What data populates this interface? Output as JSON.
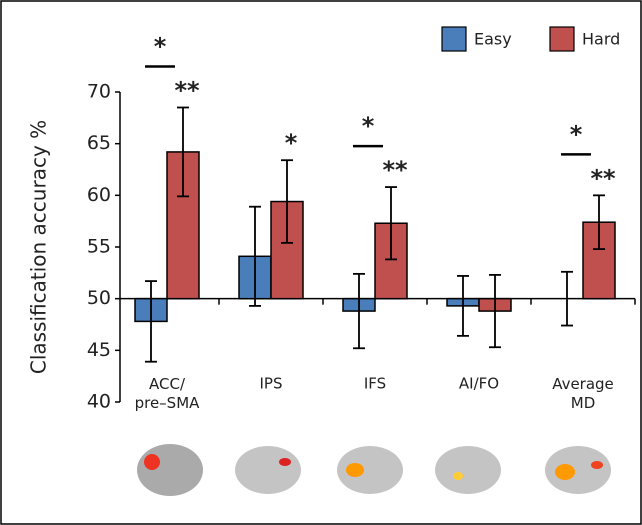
{
  "chart_data": {
    "type": "bar",
    "y_label": "Classification accuracy %",
    "categories": [
      "ACC/\npre–SMA",
      "IPS",
      "IFS",
      "AI/FO",
      "Average\nMD"
    ],
    "series": [
      {
        "name": "Easy",
        "color": "#4a7ebb",
        "values": [
          47.8,
          54.1,
          48.8,
          49.3,
          50.0
        ],
        "errors": [
          3.9,
          4.8,
          3.6,
          2.9,
          2.6
        ]
      },
      {
        "name": "Hard",
        "color": "#c0504d",
        "values": [
          64.2,
          59.4,
          57.3,
          48.8,
          57.4
        ],
        "errors": [
          4.3,
          4.0,
          3.5,
          3.5,
          2.6
        ]
      }
    ],
    "baseline": 50,
    "ylim": [
      40,
      70
    ],
    "yticks": [
      40,
      45,
      50,
      55,
      60,
      65,
      70
    ],
    "legend": "top-right",
    "significance": [
      {
        "category": 0,
        "label": "*"
      },
      {
        "category": 0,
        "series": 1,
        "label": "**"
      },
      {
        "category": 1,
        "series": 1,
        "label": "*"
      },
      {
        "category": 2,
        "label": "*"
      },
      {
        "category": 2,
        "series": 1,
        "label": "**"
      },
      {
        "category": 4,
        "label": "*"
      },
      {
        "category": 4,
        "series": 1,
        "label": "**"
      }
    ]
  }
}
